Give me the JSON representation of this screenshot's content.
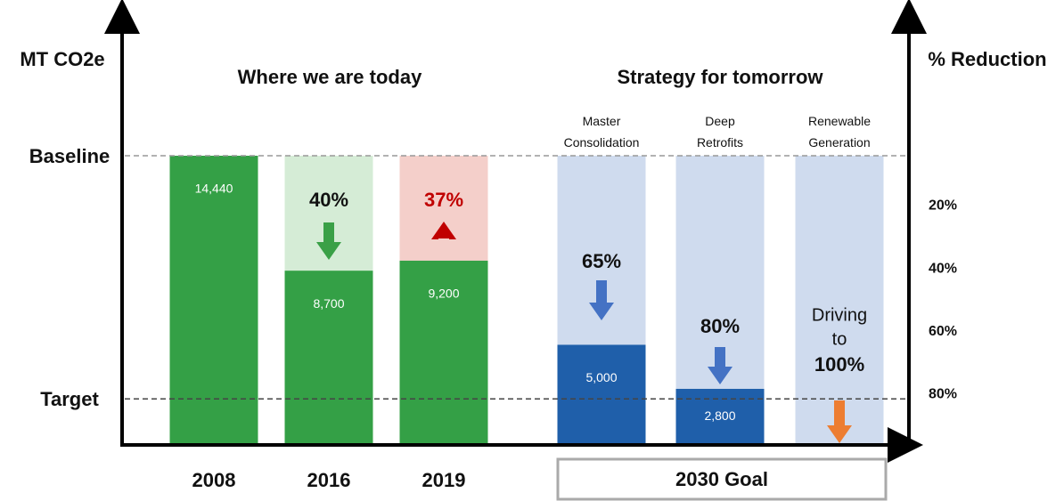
{
  "chart_data": {
    "type": "bar",
    "y_label": "MT CO2e",
    "y2_label": "% Reduction",
    "section_labels": [
      "Where we are today",
      "Strategy for tomorrow"
    ],
    "group_label": "2030 Goal",
    "categories": [
      "2008",
      "2016",
      "2019",
      "Master Consolidation",
      "Deep Retrofits",
      "Renewable Generation"
    ],
    "values": [
      14440,
      8700,
      9200,
      5000,
      2800,
      null
    ],
    "value_labels": [
      "14,440",
      "8,700",
      "9,200",
      "5,000",
      "2,800",
      null
    ],
    "colors": [
      "#34a046",
      "#34a046",
      "#34a046",
      "#1f5faa",
      "#1f5faa",
      "#1f5faa"
    ],
    "ghost_colors": [
      null,
      "#d5ecd6",
      "#f4cfca",
      "#cfdbee",
      "#cfdbee",
      "#cfdbee"
    ],
    "change_labels": [
      null,
      "40%",
      "37%",
      "65%",
      "80%",
      "100%"
    ],
    "change_label_colors": [
      null,
      "#111111",
      "#c00000",
      "#111111",
      "#111111",
      "#111111"
    ],
    "change_notes": [
      null,
      null,
      null,
      null,
      null,
      [
        "Driving",
        "to"
      ]
    ],
    "arrows": [
      null,
      "down",
      "up",
      "down",
      "down",
      "down"
    ],
    "arrow_colors": [
      null,
      "#3aa047",
      "#c00000",
      "#4472c4",
      "#4472c4",
      "#ed7d31"
    ],
    "reference_lines": [
      {
        "label": "Baseline",
        "value": 14440
      },
      {
        "label": "Target",
        "value": 2300
      }
    ],
    "ylim": [
      0,
      14440
    ],
    "y2lim": [
      96,
      4
    ],
    "y2ticks": [
      {
        "value": 20,
        "label": "20%"
      },
      {
        "value": 40,
        "label": "40%"
      },
      {
        "value": 60,
        "label": "60%"
      },
      {
        "value": 80,
        "label": "80%"
      }
    ]
  }
}
